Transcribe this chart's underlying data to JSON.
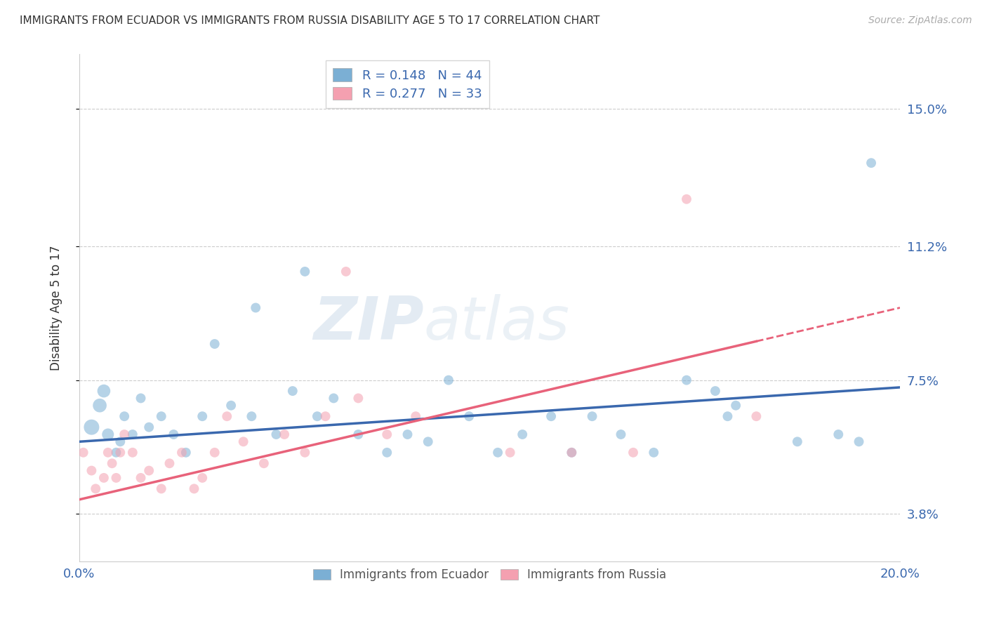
{
  "title": "IMMIGRANTS FROM ECUADOR VS IMMIGRANTS FROM RUSSIA DISABILITY AGE 5 TO 17 CORRELATION CHART",
  "source": "Source: ZipAtlas.com",
  "ylabel": "Disability Age 5 to 17",
  "xlim": [
    0.0,
    20.0
  ],
  "ylim": [
    2.5,
    16.5
  ],
  "yticks": [
    3.8,
    7.5,
    11.2,
    15.0
  ],
  "ytick_labels": [
    "3.8%",
    "7.5%",
    "11.2%",
    "15.0%"
  ],
  "ecuador_color": "#7BAFD4",
  "russia_color": "#F4A0B0",
  "ecuador_line_color": "#3A68AE",
  "russia_line_color": "#E8627A",
  "ecuador_R": 0.148,
  "ecuador_N": 44,
  "russia_R": 0.277,
  "russia_N": 33,
  "watermark": "ZIPAtlas",
  "legend_label_ecuador": "Immigrants from Ecuador",
  "legend_label_russia": "Immigrants from Russia",
  "ecuador_points_x": [
    0.3,
    0.5,
    0.6,
    0.7,
    0.9,
    1.0,
    1.1,
    1.3,
    1.5,
    1.7,
    2.0,
    2.3,
    2.6,
    3.0,
    3.3,
    3.7,
    4.2,
    4.8,
    5.2,
    5.8,
    6.2,
    6.8,
    7.5,
    8.0,
    8.5,
    9.0,
    9.5,
    10.2,
    10.8,
    11.5,
    12.0,
    12.5,
    13.2,
    14.0,
    14.8,
    15.5,
    15.8,
    16.0,
    17.5,
    18.5,
    19.0,
    19.3,
    4.3,
    5.5
  ],
  "ecuador_points_y": [
    6.2,
    6.8,
    7.2,
    6.0,
    5.5,
    5.8,
    6.5,
    6.0,
    7.0,
    6.2,
    6.5,
    6.0,
    5.5,
    6.5,
    8.5,
    6.8,
    6.5,
    6.0,
    7.2,
    6.5,
    7.0,
    6.0,
    5.5,
    6.0,
    5.8,
    7.5,
    6.5,
    5.5,
    6.0,
    6.5,
    5.5,
    6.5,
    6.0,
    5.5,
    7.5,
    7.2,
    6.5,
    6.8,
    5.8,
    6.0,
    5.8,
    13.5,
    9.5,
    10.5
  ],
  "ecuador_sizes": [
    250,
    200,
    180,
    150,
    100,
    100,
    100,
    100,
    100,
    100,
    100,
    100,
    100,
    100,
    100,
    100,
    100,
    100,
    100,
    100,
    100,
    100,
    100,
    100,
    100,
    100,
    100,
    100,
    100,
    100,
    100,
    100,
    100,
    100,
    100,
    100,
    100,
    100,
    100,
    100,
    100,
    100,
    100,
    100
  ],
  "russia_points_x": [
    0.1,
    0.3,
    0.4,
    0.6,
    0.7,
    0.8,
    0.9,
    1.0,
    1.1,
    1.3,
    1.5,
    1.7,
    2.0,
    2.2,
    2.5,
    2.8,
    3.0,
    3.3,
    3.6,
    4.0,
    4.5,
    5.0,
    5.5,
    6.0,
    6.8,
    7.5,
    8.2,
    10.5,
    12.0,
    13.5,
    14.8,
    16.5,
    6.5
  ],
  "russia_points_y": [
    5.5,
    5.0,
    4.5,
    4.8,
    5.5,
    5.2,
    4.8,
    5.5,
    6.0,
    5.5,
    4.8,
    5.0,
    4.5,
    5.2,
    5.5,
    4.5,
    4.8,
    5.5,
    6.5,
    5.8,
    5.2,
    6.0,
    5.5,
    6.5,
    7.0,
    6.0,
    6.5,
    5.5,
    5.5,
    5.5,
    12.5,
    6.5,
    10.5
  ],
  "russia_sizes": [
    100,
    100,
    100,
    100,
    100,
    100,
    100,
    100,
    100,
    100,
    100,
    100,
    100,
    100,
    100,
    100,
    100,
    100,
    100,
    100,
    100,
    100,
    100,
    100,
    100,
    100,
    100,
    100,
    100,
    100,
    100,
    100,
    100
  ],
  "grid_color": "#CCCCCC",
  "background_color": "#FFFFFF",
  "ecuador_line_start_x": 0.0,
  "ecuador_line_start_y": 5.8,
  "ecuador_line_end_x": 20.0,
  "ecuador_line_end_y": 7.3,
  "russia_line_start_x": 0.0,
  "russia_line_start_y": 4.2,
  "russia_line_end_x": 20.0,
  "russia_line_end_y": 9.5
}
